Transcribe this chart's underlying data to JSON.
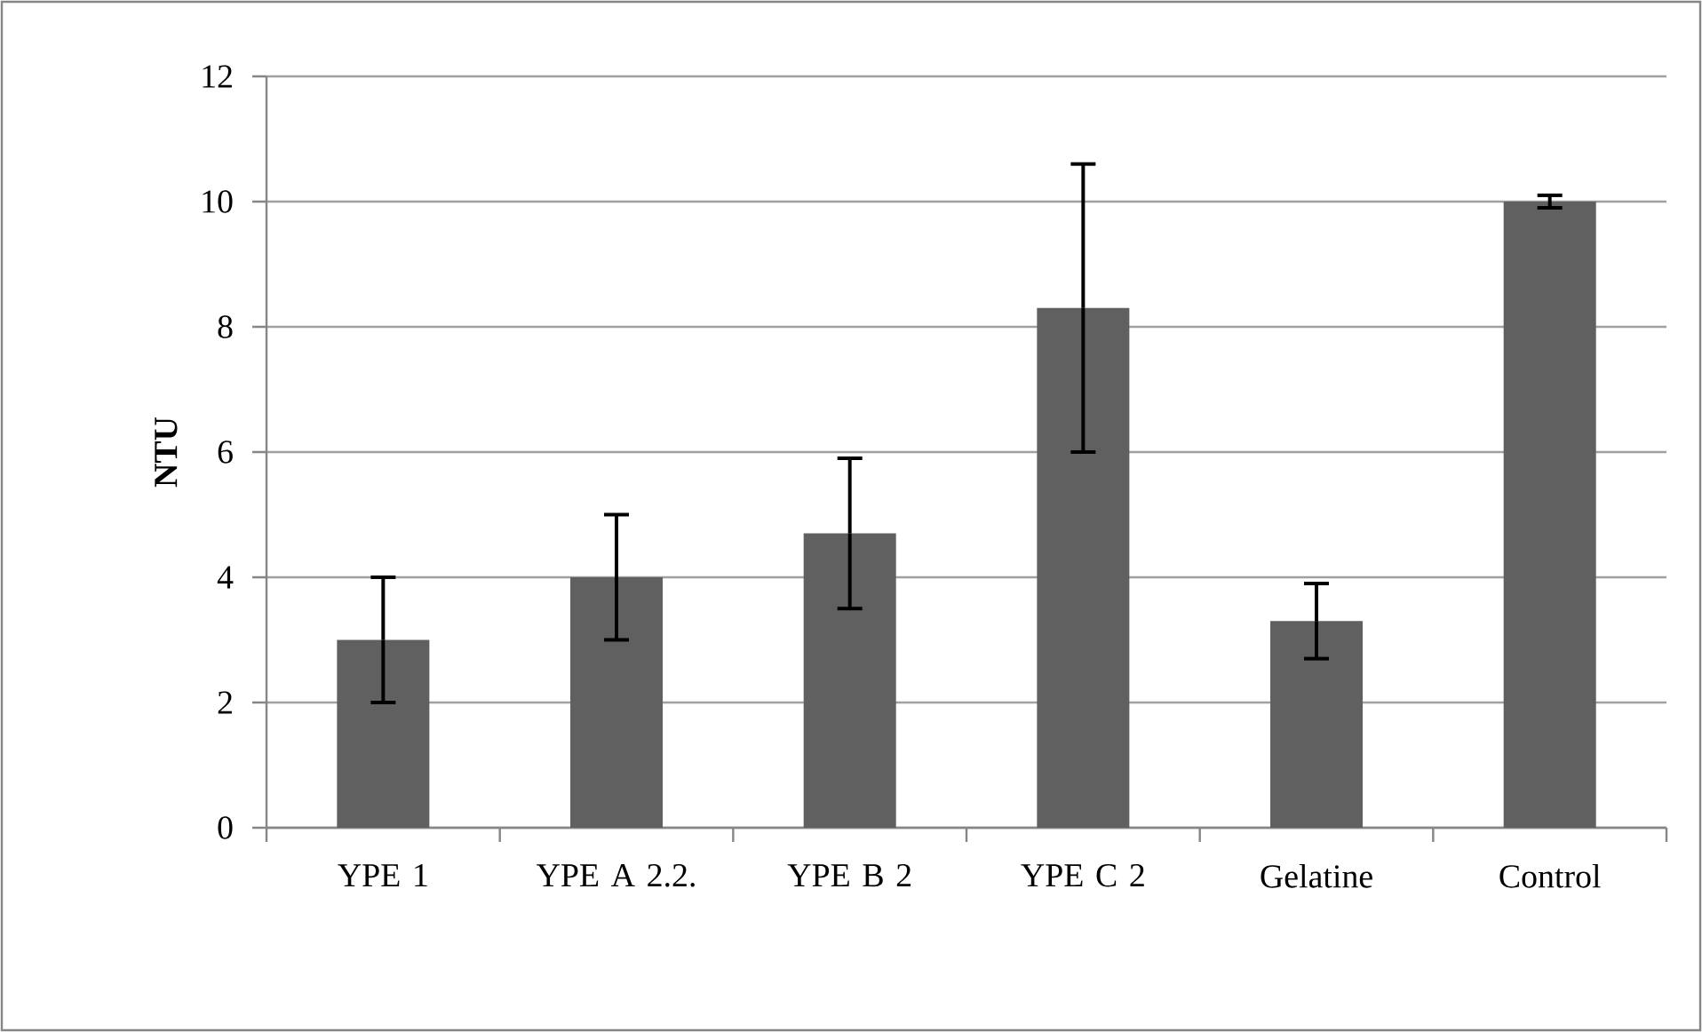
{
  "chart_data": {
    "type": "bar",
    "ylabel": "**NTU**",
    "categories": [
      "YPE 1",
      "YPE A 2.2.",
      "YPE B 2",
      "YPE C 2",
      "Gelatine",
      "Control"
    ],
    "values": [
      3.0,
      4.0,
      4.7,
      8.3,
      3.3,
      10.0
    ],
    "errors": [
      1.0,
      1.0,
      1.2,
      2.3,
      0.6,
      0.1
    ],
    "color": "#606060",
    "ylim": [
      0,
      12
    ],
    "yticks": [
      0,
      2,
      4,
      6,
      8,
      10,
      12
    ],
    "grid": "y"
  }
}
